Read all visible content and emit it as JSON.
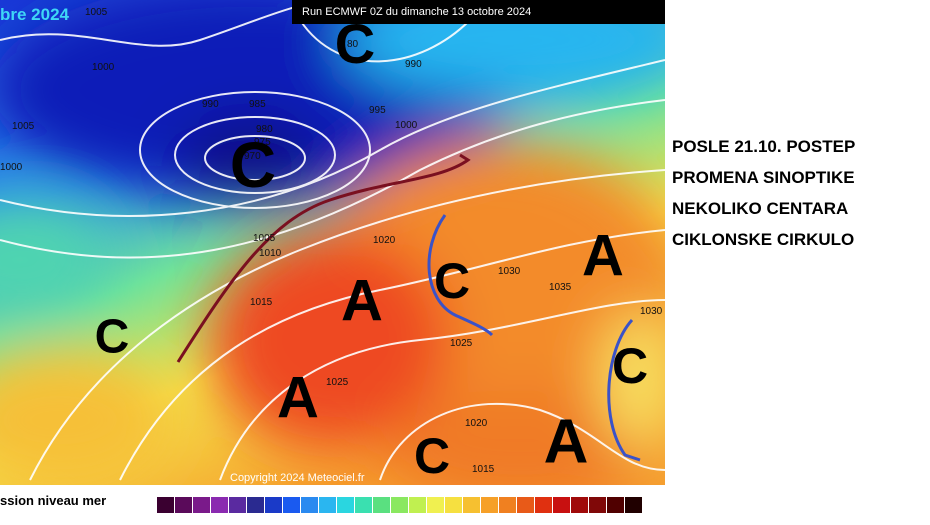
{
  "header": {
    "partial_title": "bre 2024",
    "run": "Run ECMWF 0Z du dimanche 13 octobre 2024"
  },
  "isobar_labels": [
    "1005",
    "1000",
    "1005",
    "1000",
    "990",
    "985",
    "980",
    "975",
    "970",
    "80",
    "990",
    "995",
    "1000",
    "1005",
    "1010",
    "1015",
    "1020",
    "1030",
    "1035",
    "1030",
    "1025",
    "1025",
    "1020",
    "1015"
  ],
  "pressure_centers": [
    "C",
    "C",
    "C",
    "A",
    "C",
    "A",
    "A",
    "C",
    "A",
    "C"
  ],
  "annotation": {
    "lines": [
      "POSLE 21.10. POSTEP",
      "PROMENA SINOPTIKE",
      "NEKOLIKO CENTARA",
      "CIKLONSKE CIRKULO"
    ]
  },
  "footer": {
    "legend_title": "ssion niveau mer",
    "copyright": "Copyright 2024 Meteociel.fr"
  }
}
